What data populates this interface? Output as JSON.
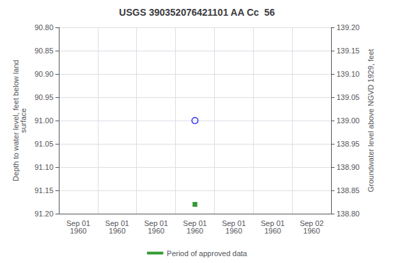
{
  "chart_data": {
    "type": "scatter",
    "title": "USGS 390352076421101 AA Cc  56",
    "ylabel": "Depth to water level, feet below land\nsurface",
    "y2label": "Groundwater level above NGVD 1929, feet",
    "categories": [
      "Sep 01\n1960",
      "Sep 01\n1960",
      "Sep 01\n1960",
      "Sep 01\n1960",
      "Sep 01\n1960",
      "Sep 01\n1960",
      "Sep 02\n1960"
    ],
    "series": [
      {
        "color": "blue",
        "marker": "circle-open",
        "values": [
          null,
          null,
          null,
          91.0,
          null,
          null,
          null
        ]
      },
      {
        "name": "Period of approved data",
        "color": "green",
        "marker": "square",
        "values": [
          null,
          null,
          null,
          91.18,
          null,
          null,
          null
        ]
      }
    ],
    "ylim": [
      91.2,
      90.8
    ],
    "yticks": [
      {
        "value": 90.8,
        "label": "90.80"
      },
      90.85,
      {
        "value": 90.9,
        "label": "90.90"
      },
      90.95,
      {
        "value": 91.0,
        "label": "91.00"
      },
      91.05,
      {
        "value": 91.1,
        "label": "91.10"
      },
      91.15,
      {
        "value": 91.2,
        "label": "91.20"
      }
    ],
    "y2lim": [
      138.8,
      139.2
    ],
    "y2ticks": [
      {
        "value": 139.2,
        "label": "139.20"
      },
      139.15,
      {
        "value": 139.1,
        "label": "139.10"
      },
      139.05,
      {
        "value": 139.0,
        "label": "139.00"
      },
      138.95,
      {
        "value": 138.9,
        "label": "138.90"
      },
      138.85,
      {
        "value": 138.8,
        "label": "138.80"
      }
    ],
    "grid": true,
    "legend": "bottom"
  }
}
